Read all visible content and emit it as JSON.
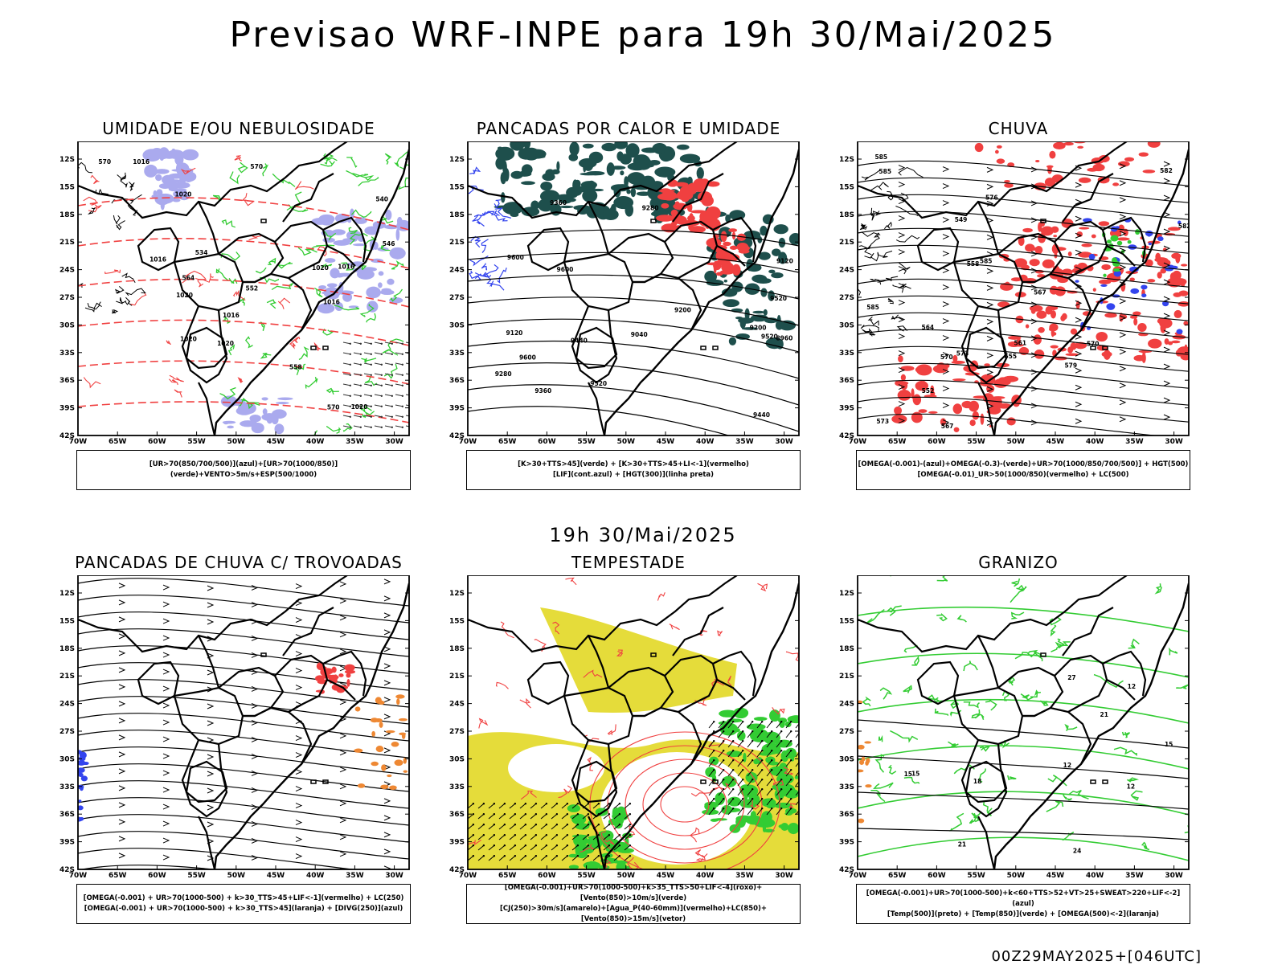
{
  "main_title": "Previsao WRF-INPE  para 19h 30/Mai/2025",
  "mid_date": "19h 30/Mai/2025",
  "footer_stamp": "00Z29MAY2025+[046UTC]",
  "axes": {
    "lat_labels": [
      "12S",
      "15S",
      "18S",
      "21S",
      "24S",
      "27S",
      "30S",
      "33S",
      "36S",
      "39S",
      "42S"
    ],
    "lon_labels": [
      "70W",
      "65W",
      "60W",
      "55W",
      "50W",
      "45W",
      "40W",
      "35W",
      "30W"
    ]
  },
  "panels": [
    {
      "title": "UMIDADE E/OU NEBULOSIDADE",
      "legend": [
        "[UR>70(850/700/500)](azul)+[UR>70(1000/850)](verde)+VENTO>5m/s+ESP(500/1000)"
      ],
      "contour_labels": [
        "1016",
        "1016",
        "1016",
        "1016",
        "1020",
        "1020",
        "1020",
        "1020",
        "1020",
        "1020",
        "1016",
        "570",
        "570",
        "570",
        "564",
        "558",
        "552",
        "546",
        "540",
        "534"
      ]
    },
    {
      "title": "PANCADAS POR CALOR E UMIDADE",
      "legend": [
        "[K>30+TTS>45](verde) + [K>30+TTS>45+LI<-1](vermelho)",
        "[LIF](cont.azul) + [HGT(300)](linha preta)"
      ],
      "contour_labels": [
        "9600",
        "9600",
        "9600",
        "9520",
        "9520",
        "9520",
        "9440",
        "9440",
        "9360",
        "9360",
        "9280",
        "9280",
        "9200",
        "9120",
        "9200",
        "9040",
        "8960",
        "9120"
      ]
    },
    {
      "title": "CHUVA",
      "legend": [
        "[OMEGA(-0.001)-(azul)+OMEGA(-0.3)-(verde)+UR>70(1000/850/700/500)] + HGT(500)",
        "[OMEGA(-0.01)_UR>50(1000/850)(vermelho) + LC(500)"
      ],
      "contour_labels": [
        "585",
        "585",
        "585",
        "582",
        "582",
        "579",
        "576",
        "573",
        "573",
        "570",
        "570",
        "567",
        "567",
        "564",
        "561",
        "558",
        "555",
        "552",
        "549",
        "585"
      ]
    },
    {
      "title": "PANCADAS DE CHUVA C/ TROVOADAS",
      "legend": [
        "[OMEGA(-0.001) + UR>70(1000-500) + k>30_TTS>45+LIF<-1](vermelho) + LC(250)",
        "[OMEGA(-0.001) + UR>70(1000-500) + k>30_TTS>45](laranja) + [DIVG(250)](azul)"
      ],
      "contour_labels": []
    },
    {
      "title": "TEMPESTADE",
      "legend": [
        "[OMEGA(-0.001)+UR>70(1000-500)+k>35_TTS>50+LIF<-4](roxo)+[Vento(850)>10m/s](verde)",
        "[CJ(250)>30m/s](amarelo)+[Agua_P(40-60mm)](vermelho)+LC(850)+[Vento(850)>15m/s](vetor)"
      ],
      "contour_labels": []
    },
    {
      "title": "GRANIZO",
      "legend": [
        "[OMEGA(-0.001)+UR>70(1000-500)+k<60+TTS>52+VT>25+SWEAT>220+LIF<-2](azul)",
        "[Temp(500)](preto) + [Temp(850)](verde) + [OMEGA(500)<-2](laranja)"
      ],
      "contour_labels": [
        "12",
        "12",
        "12",
        "15",
        "15",
        "15",
        "18",
        "21",
        "21",
        "24",
        "27"
      ]
    }
  ],
  "colors": {
    "red": "#f04040",
    "green": "#33cc33",
    "blue": "#3344ee",
    "lightblue": "#aaaaee",
    "darkteal": "#1e4f4c",
    "yellow": "#e5dc3a",
    "orange": "#ee8833"
  }
}
